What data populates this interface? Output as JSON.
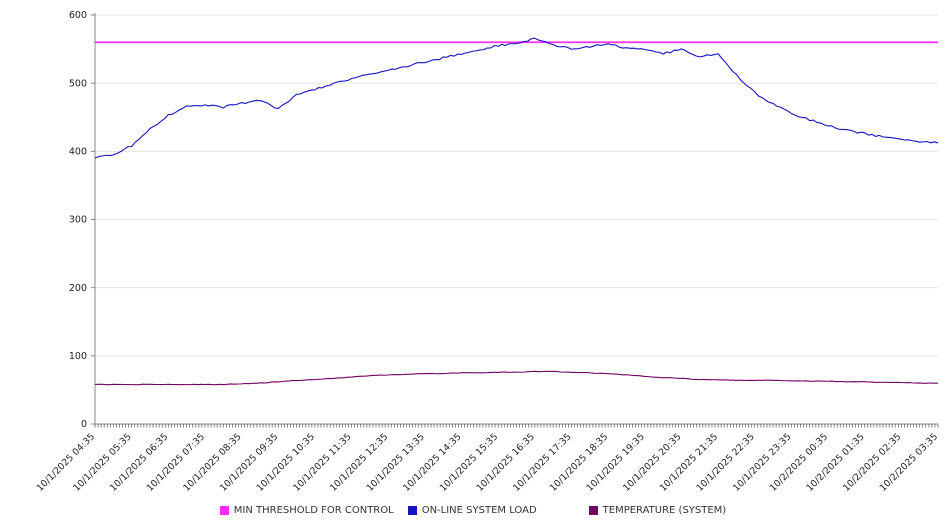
{
  "chart_data": {
    "type": "line",
    "title": "",
    "xlabel": "",
    "ylabel": "",
    "ylim": [
      0,
      600
    ],
    "y_ticks": [
      0,
      100,
      200,
      300,
      400,
      500,
      600
    ],
    "grid": true,
    "legend_position": "bottom",
    "minor_ticks_per_hour": 12,
    "x_labels": [
      "10/1/2025 04:35",
      "10/1/2025 05:35",
      "10/1/2025 06:35",
      "10/1/2025 07:35",
      "10/1/2025 08:35",
      "10/1/2025 09:35",
      "10/1/2025 10:35",
      "10/1/2025 11:35",
      "10/1/2025 12:35",
      "10/1/2025 13:35",
      "10/1/2025 14:35",
      "10/1/2025 15:35",
      "10/1/2025 16:35",
      "10/1/2025 17:35",
      "10/1/2025 18:35",
      "10/1/2025 19:35",
      "10/1/2025 20:35",
      "10/1/2025 21:35",
      "10/1/2025 22:35",
      "10/1/2025 23:35",
      "10/2/2025 00:35",
      "10/2/2025 01:35",
      "10/2/2025 02:35",
      "10/2/2025 03:35"
    ],
    "sample_interval_minutes": 30,
    "series": [
      {
        "name": "MIN THRESHOLD FOR CONTROL",
        "color": "#fb2efb",
        "kind": "threshold",
        "value": 560
      },
      {
        "name": "ON-LINE SYSTEM LOAD",
        "color": "#1515c3",
        "kind": "line",
        "values": [
          390,
          396,
          408,
          433,
          453,
          466,
          468,
          465,
          471,
          474,
          463,
          483,
          491,
          499,
          506,
          513,
          519,
          525,
          531,
          537,
          543,
          549,
          555,
          559,
          565,
          556,
          550,
          554,
          557,
          551,
          549,
          544,
          549,
          539,
          543,
          512,
          486,
          469,
          456,
          446,
          438,
          431,
          426,
          421,
          417,
          414,
          413
        ]
      },
      {
        "name": "TEMPERATURE (SYSTEM)",
        "color": "#740061",
        "kind": "line",
        "values": [
          58,
          58,
          58,
          58,
          58,
          58,
          58,
          58,
          59,
          60,
          62,
          64,
          65,
          67,
          69,
          71,
          72,
          73,
          74,
          74,
          75,
          75,
          76,
          76,
          77,
          77,
          76,
          75,
          74,
          72,
          70,
          68,
          67,
          65,
          65,
          64,
          64,
          64,
          63,
          63,
          63,
          62,
          62,
          61,
          61,
          60,
          60
        ]
      }
    ],
    "colors": {
      "grid": "#e4e4e4",
      "axis": "#888888",
      "tick": "#555555",
      "tick_label": "#222222"
    }
  }
}
